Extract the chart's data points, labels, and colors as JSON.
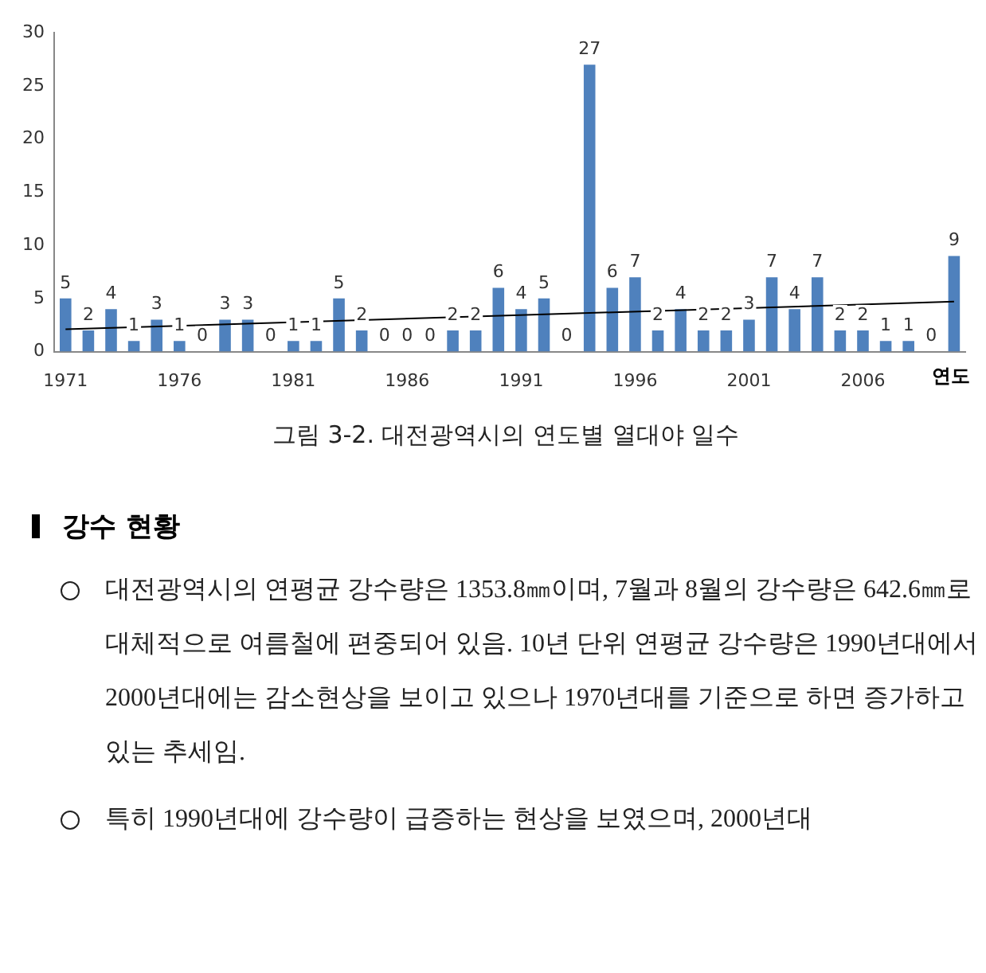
{
  "chart_data": {
    "type": "bar",
    "title": "그림 3-2. 대전광역시의 연도별 열대야 일수",
    "xlabel": "연도",
    "categories": [
      "1971",
      null,
      null,
      null,
      null,
      "1976",
      null,
      null,
      null,
      null,
      "1981",
      null,
      null,
      null,
      null,
      "1986",
      null,
      null,
      null,
      null,
      "1991",
      null,
      null,
      null,
      null,
      "1996",
      null,
      null,
      null,
      null,
      "2001",
      null,
      null,
      null,
      null,
      "2006",
      null,
      null,
      null,
      null
    ],
    "series": [
      {
        "color": "#4f81bd",
        "values": [
          5,
          2,
          4,
          1,
          3,
          1,
          0,
          3,
          3,
          0,
          1,
          1,
          5,
          2,
          0,
          0,
          0,
          2,
          2,
          6,
          4,
          5,
          0,
          27,
          6,
          7,
          2,
          4,
          2,
          2,
          3,
          7,
          4,
          7,
          2,
          2,
          1,
          1,
          0,
          9
        ],
        "value_labels": [
          "5",
          "2",
          "4",
          "1",
          "3",
          "1",
          "0",
          "3",
          "3",
          "0",
          "1",
          "1",
          "5",
          "2",
          "0",
          "0",
          "0",
          "2",
          "2",
          "6",
          "4",
          "5",
          "0",
          "27",
          "6",
          "7",
          "2",
          "4",
          "2",
          "2",
          "3",
          "7",
          "4",
          "7",
          "2",
          "2",
          "1",
          "1",
          "0",
          "9"
        ]
      },
      {
        "type": "line",
        "color": "#000000",
        "values": [
          2.1,
          null,
          null,
          null,
          null,
          null,
          null,
          null,
          null,
          null,
          null,
          null,
          null,
          null,
          null,
          null,
          null,
          null,
          null,
          null,
          null,
          null,
          null,
          null,
          null,
          null,
          null,
          null,
          null,
          null,
          null,
          null,
          null,
          null,
          null,
          null,
          null,
          null,
          null,
          4.7
        ]
      }
    ],
    "ylim": [
      0,
      30
    ],
    "yticks": [
      0,
      5,
      10,
      15,
      20,
      25,
      30
    ],
    "grid": false,
    "legend": false,
    "marker": "none",
    "annotations": [
      "강수 현황",
      "대전광역시의 연평균 강수량은 1353.8㎜이며, 7월과 8월의 강수량은 642.6㎜로 대체적으로 여름철에 편중되어 있음. 10년 단위 연평균 강수량은 1990년대에서 2000년대에는 감소현상을 보이고 있으나 1970년대를 기준으로 하면 증가하고 있는 추세임.",
      "특히 1990년대에 강수량이 급증하는 현상을 보였으며, 2000년대"
    ]
  }
}
